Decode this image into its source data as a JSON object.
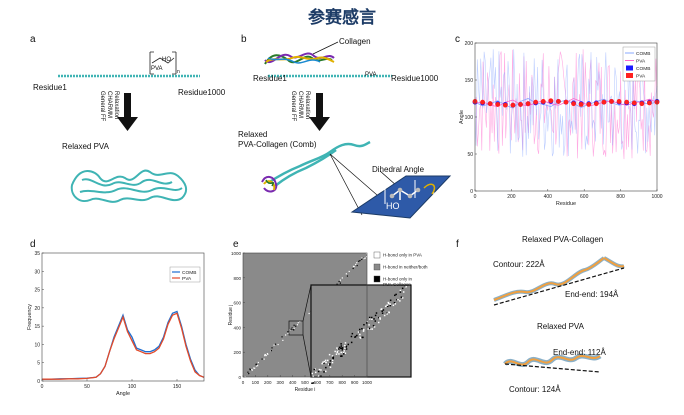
{
  "title": "参赛感言",
  "panels": {
    "a": {
      "letter": "a",
      "residue_start": "Residue1",
      "polymer": "PVA",
      "residue_end": "Residue1000",
      "subscript": "n",
      "hydroxyl": "HO",
      "process": [
        "Relaxation",
        "CHARMM",
        "General FF"
      ],
      "result": "Relaxed PVA"
    },
    "b": {
      "letter": "b",
      "collagen": "Collagen",
      "residue_start": "Residue1",
      "polymer": "PVA",
      "residue_end": "Residue1000",
      "process": [
        "Relaxation",
        "CHARMM",
        "General FF"
      ],
      "result_line1": "Relaxed",
      "result_line2": "PVA-Collagen (Comb)",
      "dihedral": "Dihedral Angle",
      "hydroxyl": "HO",
      "subscript": "n"
    },
    "c": {
      "letter": "c"
    },
    "d": {
      "letter": "d"
    },
    "e": {
      "letter": "e"
    },
    "f": {
      "letter": "f",
      "top_title": "Relaxed PVA-Collagen",
      "top_contour": "Contour: 222Å",
      "top_endend": "End-end: 194Å",
      "bottom_title": "Relaxed PVA",
      "bottom_endend": "End-end: 112Å",
      "bottom_contour": "Contour: 124Å"
    }
  },
  "colors": {
    "title": "#1c3b66",
    "comb": "#1f6fd1",
    "pva": "#e24a2a",
    "comb_light": "#8aa8ff",
    "pva_light": "#ff66cc",
    "chain": "#3fb4b4",
    "dark_red": "#c0392b"
  },
  "chart_data": [
    {
      "id": "c",
      "type": "scatter",
      "xlabel": "Residue",
      "ylabel": "Angle",
      "xlim": [
        0,
        1000
      ],
      "ylim": [
        0,
        200
      ],
      "xticks": [
        "0",
        "200",
        "400",
        "600",
        "800",
        "1000"
      ],
      "yticks": [
        "0",
        "50",
        "100",
        "150",
        "200"
      ],
      "legend": [
        "COMB",
        "PVA",
        "COMB",
        "PVA"
      ],
      "legend_colors": [
        "#8aa8ff",
        "#ff66cc",
        "#1a1aff",
        "#ff2020"
      ],
      "series": [
        {
          "name": "COMB",
          "style": "line",
          "values": [
            120,
            115,
            118,
            122,
            116,
            112,
            121,
            125,
            119,
            117,
            114,
            120,
            123,
            118,
            113,
            117,
            121,
            124,
            119,
            116,
            118,
            122,
            120,
            117,
            121
          ]
        },
        {
          "name": "PVA",
          "style": "line",
          "values": [
            118,
            121,
            116,
            114,
            120,
            123,
            117,
            115,
            119,
            122,
            118,
            116,
            120,
            125,
            121,
            115,
            117,
            120,
            122,
            118,
            116,
            119,
            121,
            124,
            120
          ]
        },
        {
          "name": "COMB",
          "style": "markers",
          "values": [
            120,
            119,
            118,
            118,
            117,
            116,
            117,
            118,
            119,
            120,
            121,
            121,
            120,
            119,
            118,
            118,
            119,
            120,
            121,
            120,
            119,
            118,
            119,
            120,
            121
          ]
        },
        {
          "name": "PVA",
          "style": "markers",
          "values": [
            121,
            120,
            118,
            117,
            116,
            116,
            117,
            118,
            120,
            121,
            122,
            121,
            120,
            118,
            117,
            117,
            118,
            120,
            121,
            121,
            120,
            119,
            118,
            119,
            120
          ]
        }
      ]
    },
    {
      "id": "d",
      "type": "line",
      "xlabel": "Angle",
      "ylabel": "Frequency",
      "xlim": [
        0,
        180
      ],
      "ylim": [
        0,
        35
      ],
      "xticks": [
        "0",
        "50",
        "100",
        "150"
      ],
      "yticks": [
        "0",
        "5",
        "10",
        "15",
        "20",
        "25",
        "30",
        "35"
      ],
      "x": [
        0,
        10,
        20,
        30,
        40,
        50,
        60,
        65,
        70,
        75,
        80,
        85,
        90,
        95,
        100,
        105,
        110,
        115,
        120,
        125,
        130,
        135,
        140,
        145,
        150,
        155,
        160,
        165,
        170,
        175,
        180
      ],
      "series": [
        {
          "name": "COMB",
          "values": [
            0.5,
            0.5,
            0.6,
            0.6,
            0.7,
            0.8,
            1.0,
            2.0,
            4.0,
            8.0,
            12.0,
            15.0,
            18.0,
            14.0,
            12.0,
            9.0,
            8.5,
            8.0,
            8.0,
            8.5,
            9.5,
            12.0,
            16.0,
            18.5,
            19.0,
            15.0,
            10.0,
            6.0,
            3.0,
            1.5,
            1.0
          ]
        },
        {
          "name": "PVA",
          "values": [
            0.5,
            0.5,
            0.5,
            0.6,
            0.6,
            0.7,
            1.0,
            2.0,
            4.0,
            8.0,
            11.5,
            14.5,
            17.5,
            13.5,
            11.0,
            8.5,
            8.0,
            7.5,
            7.5,
            8.0,
            9.0,
            11.5,
            15.5,
            18.0,
            18.5,
            14.5,
            9.5,
            5.5,
            2.5,
            1.5,
            1.0
          ]
        }
      ]
    },
    {
      "id": "e",
      "type": "heatmap",
      "xlabel": "Residue i",
      "ylabel": "Residue j",
      "xlim": [
        0,
        1000
      ],
      "ylim": [
        0,
        1000
      ],
      "xticks": [
        "0",
        "100",
        "200",
        "300",
        "400",
        "500",
        "600",
        "700",
        "800",
        "900",
        "1000"
      ],
      "yticks": [
        "0",
        "200",
        "400",
        "600",
        "800",
        "1000"
      ],
      "legend": [
        "H-bond only in PVA",
        "H-bond in neither/both",
        "H-bond only in PVA-Collagen"
      ],
      "legend_colors": [
        "#ffffff",
        "#8a8a8a",
        "#000000"
      ]
    }
  ]
}
